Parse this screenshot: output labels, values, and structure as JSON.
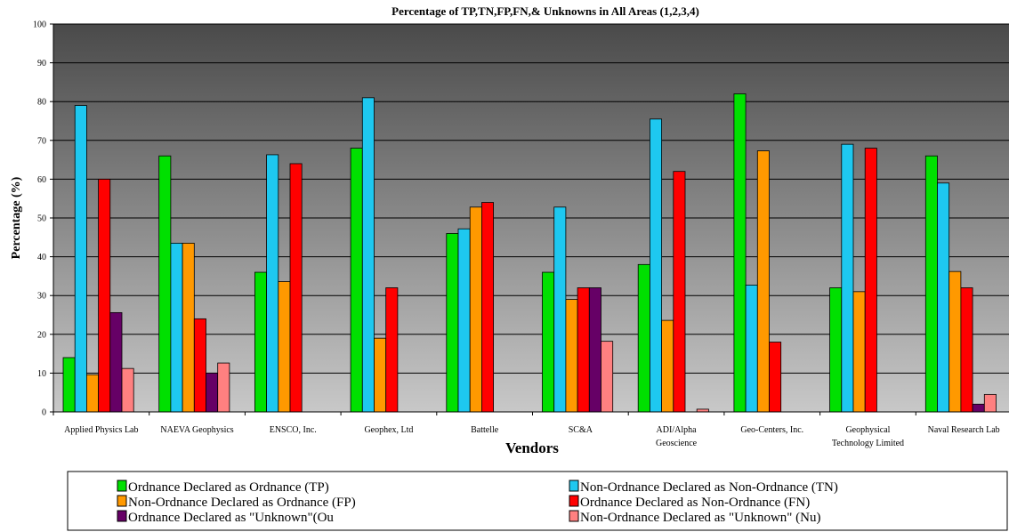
{
  "chart_data": {
    "type": "bar",
    "title": "Percentage of TP,TN,FP,FN,& Unknowns in All Areas (1,2,3,4)",
    "xlabel": "Vendors",
    "ylabel": "Percentage (%)",
    "ylim": [
      0,
      100
    ],
    "yticks": [
      "0",
      "10",
      "20",
      "30",
      "40",
      "50",
      "60",
      "70",
      "80",
      "90",
      "100"
    ],
    "grid": true,
    "legend_position": "bottom",
    "categories": [
      [
        "Applied Physics Lab"
      ],
      [
        "NAEVA Geophysics"
      ],
      [
        "ENSCO, Inc."
      ],
      [
        "Geophex, Ltd"
      ],
      [
        "Battelle"
      ],
      [
        "SC&A"
      ],
      [
        "ADI/Alpha",
        "Geoscience"
      ],
      [
        "Geo-Centers, Inc."
      ],
      [
        "Geophysical",
        "Technology Limited"
      ],
      [
        "Naval Research Lab"
      ]
    ],
    "series": [
      {
        "name": "Ordnance Declared as Ordnance (TP)",
        "color": "#00e000",
        "values": [
          14,
          66,
          36,
          68,
          46,
          36,
          38,
          82,
          32,
          66
        ]
      },
      {
        "name": "Non-Ordnance Declared as Non-Ordnance (TN)",
        "color": "#1ec8f0",
        "values": [
          79,
          43.5,
          66.3,
          81,
          47.2,
          52.8,
          75.5,
          32.7,
          69,
          59
        ]
      },
      {
        "name": "Non-Ordnance Declared as Ordnance (FP)",
        "color": "#ff9900",
        "values": [
          9.6,
          43.5,
          33.6,
          19,
          52.8,
          29,
          23.6,
          67.3,
          31,
          36.2
        ]
      },
      {
        "name": "Ordnance Declared as Non-Ordnance (FN)",
        "color": "#ff0000",
        "values": [
          60,
          24,
          64,
          32,
          54,
          32,
          62,
          18,
          68,
          32
        ]
      },
      {
        "name": "Ordnance Declared as \"Unknown\"(Ou",
        "color": "#660066",
        "values": [
          25.6,
          10,
          0,
          0,
          0,
          32,
          0,
          0,
          0,
          2
        ]
      },
      {
        "name": "Non-Ordnance Declared as \"Unknown\" (Nu)",
        "color": "#ff8080",
        "values": [
          11.2,
          12.6,
          0,
          0,
          0,
          18.2,
          0.7,
          0,
          0,
          4.5
        ]
      }
    ]
  }
}
